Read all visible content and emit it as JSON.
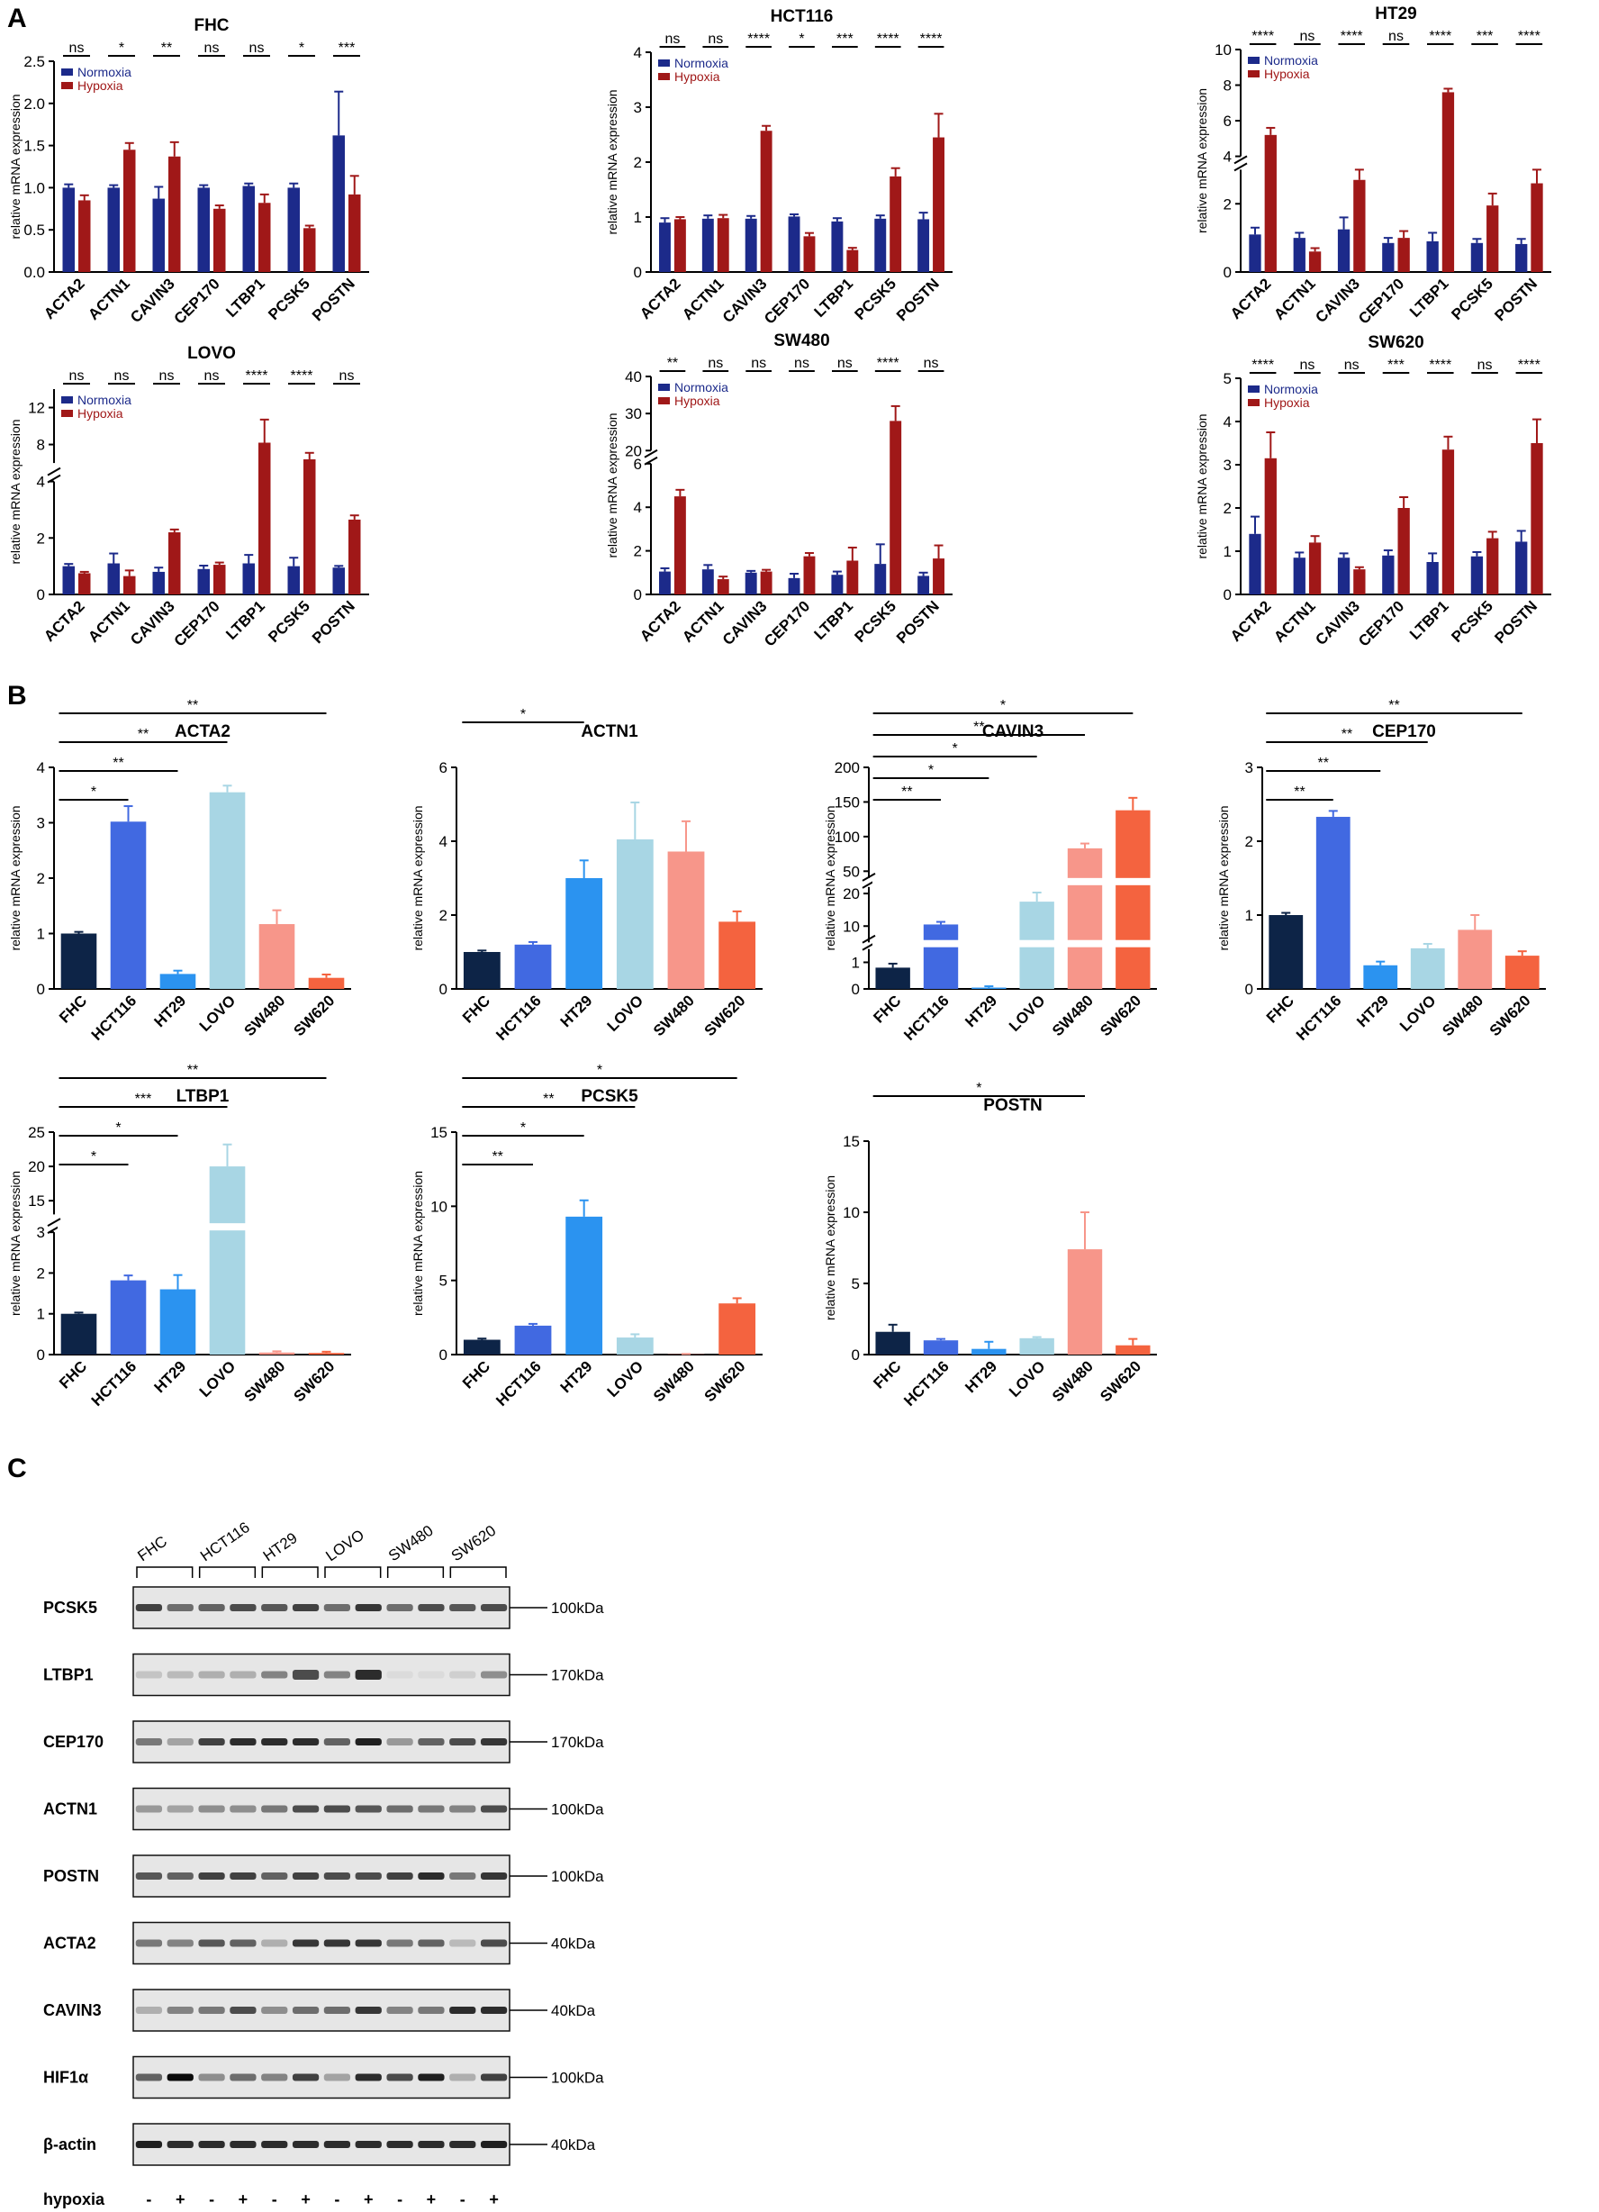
{
  "panels": {
    "a": "A",
    "b": "B",
    "c": "C"
  },
  "colors": {
    "normoxia": "#1c2a8a",
    "hypoxia": "#a01818",
    "cells": [
      "#0d2447",
      "#4169e1",
      "#2b93f0",
      "#a8d6e4",
      "#f7968a",
      "#f4633f"
    ]
  },
  "y_axis_label": "relative mRNA expression",
  "legend": {
    "normoxia": "Normoxia",
    "hypoxia": "Hypoxia"
  },
  "chart_data": [
    {
      "id": "a-FHC",
      "type": "bar",
      "title": "FHC",
      "categories": [
        "ACTA2",
        "ACTN1",
        "CAVIN3",
        "CEP170",
        "LTBP1",
        "PCSK5",
        "POSTN"
      ],
      "ylim": [
        0,
        2.5
      ],
      "yticks": [
        "0.0",
        "0.5",
        "1.0",
        "1.5",
        "2.0",
        "2.5"
      ],
      "series": [
        {
          "name": "Normoxia",
          "values": [
            1.0,
            1.0,
            0.87,
            1.0,
            1.02,
            1.0,
            1.62
          ],
          "errors": [
            0.04,
            0.03,
            0.14,
            0.03,
            0.03,
            0.05,
            0.52
          ]
        },
        {
          "name": "Hypoxia",
          "values": [
            0.85,
            1.45,
            1.37,
            0.75,
            0.82,
            0.52,
            0.92
          ],
          "errors": [
            0.06,
            0.08,
            0.17,
            0.04,
            0.1,
            0.03,
            0.22
          ]
        }
      ],
      "significance": [
        "ns",
        "*",
        "**",
        "ns",
        "ns",
        "*",
        "***"
      ]
    },
    {
      "id": "a-HCT116",
      "type": "bar",
      "title": "HCT116",
      "categories": [
        "ACTA2",
        "ACTN1",
        "CAVIN3",
        "CEP170",
        "LTBP1",
        "PCSK5",
        "POSTN"
      ],
      "ylim": [
        0,
        4
      ],
      "yticks": [
        "0",
        "1",
        "2",
        "3",
        "4"
      ],
      "series": [
        {
          "name": "Normoxia",
          "values": [
            0.9,
            0.97,
            0.97,
            1.01,
            0.92,
            0.97,
            0.96
          ],
          "errors": [
            0.08,
            0.06,
            0.05,
            0.04,
            0.06,
            0.06,
            0.12
          ]
        },
        {
          "name": "Hypoxia",
          "values": [
            0.96,
            0.98,
            2.57,
            0.65,
            0.4,
            1.74,
            2.45
          ],
          "errors": [
            0.04,
            0.06,
            0.09,
            0.06,
            0.04,
            0.15,
            0.43
          ]
        }
      ],
      "significance": [
        "ns",
        "ns",
        "****",
        "*",
        "***",
        "****",
        "****"
      ]
    },
    {
      "id": "a-HT29",
      "type": "bar",
      "title": "HT29",
      "categories": [
        "ACTA2",
        "ACTN1",
        "CAVIN3",
        "CEP170",
        "LTBP1",
        "PCSK5",
        "POSTN"
      ],
      "ylim": [
        0,
        10
      ],
      "yticks": [
        "0",
        "2",
        "4",
        "6",
        "8",
        "10"
      ],
      "series": [
        {
          "name": "Normoxia",
          "values": [
            1.1,
            1.0,
            1.25,
            0.85,
            0.9,
            0.85,
            0.82
          ],
          "errors": [
            0.2,
            0.15,
            0.35,
            0.15,
            0.25,
            0.12,
            0.15
          ]
        },
        {
          "name": "Hypoxia",
          "values": [
            5.2,
            0.6,
            2.7,
            1.0,
            7.6,
            1.95,
            2.6
          ],
          "errors": [
            0.4,
            0.1,
            0.35,
            0.2,
            0.2,
            0.35,
            0.6
          ]
        }
      ],
      "significance": [
        "****",
        "ns",
        "****",
        "ns",
        "****",
        "***",
        "****"
      ]
    },
    {
      "id": "a-LOVO",
      "type": "bar",
      "title": "LOVO",
      "categories": [
        "ACTA2",
        "ACTN1",
        "CAVIN3",
        "CEP170",
        "LTBP1",
        "PCSK5",
        "POSTN"
      ],
      "ylim": [
        0,
        14
      ],
      "yticks": [
        "0",
        "2",
        "4",
        "8",
        "12"
      ],
      "series": [
        {
          "name": "Normoxia",
          "values": [
            1.0,
            1.1,
            0.8,
            0.9,
            1.1,
            1.0,
            0.95
          ],
          "errors": [
            0.08,
            0.35,
            0.15,
            0.12,
            0.3,
            0.3,
            0.06
          ]
        },
        {
          "name": "Hypoxia",
          "values": [
            0.75,
            0.65,
            2.2,
            1.05,
            8.2,
            6.4,
            2.65
          ],
          "errors": [
            0.05,
            0.2,
            0.1,
            0.08,
            2.5,
            0.7,
            0.15
          ]
        }
      ],
      "significance": [
        "ns",
        "ns",
        "ns",
        "ns",
        "****",
        "****",
        "ns"
      ]
    },
    {
      "id": "a-SW480",
      "type": "bar",
      "title": "SW480",
      "categories": [
        "ACTA2",
        "ACTN1",
        "CAVIN3",
        "CEP170",
        "LTBP1",
        "PCSK5",
        "POSTN"
      ],
      "ylim": [
        0,
        40
      ],
      "yticks": [
        "0",
        "2",
        "4",
        "6",
        "20",
        "30",
        "40"
      ],
      "series": [
        {
          "name": "Normoxia",
          "values": [
            1.05,
            1.15,
            1.0,
            0.75,
            0.9,
            1.4,
            0.85
          ],
          "errors": [
            0.15,
            0.2,
            0.08,
            0.2,
            0.15,
            0.9,
            0.15
          ]
        },
        {
          "name": "Hypoxia",
          "values": [
            4.5,
            0.7,
            1.05,
            1.75,
            1.55,
            28.0,
            1.65
          ],
          "errors": [
            0.3,
            0.12,
            0.08,
            0.15,
            0.6,
            4.0,
            0.6
          ]
        }
      ],
      "significance": [
        "**",
        "ns",
        "ns",
        "ns",
        "ns",
        "****",
        "ns"
      ]
    },
    {
      "id": "a-SW620",
      "type": "bar",
      "title": "SW620",
      "categories": [
        "ACTA2",
        "ACTN1",
        "CAVIN3",
        "CEP170",
        "LTBP1",
        "PCSK5",
        "POSTN"
      ],
      "ylim": [
        0,
        5
      ],
      "yticks": [
        "0",
        "1",
        "2",
        "3",
        "4",
        "5"
      ],
      "series": [
        {
          "name": "Normoxia",
          "values": [
            1.4,
            0.85,
            0.85,
            0.9,
            0.75,
            0.88,
            1.22
          ],
          "errors": [
            0.4,
            0.12,
            0.1,
            0.12,
            0.2,
            0.1,
            0.25
          ]
        },
        {
          "name": "Hypoxia",
          "values": [
            3.15,
            1.2,
            0.58,
            2.0,
            3.35,
            1.3,
            3.5
          ],
          "errors": [
            0.6,
            0.15,
            0.05,
            0.25,
            0.3,
            0.15,
            0.55
          ]
        }
      ],
      "significance": [
        "****",
        "ns",
        "ns",
        "***",
        "****",
        "ns",
        "****"
      ]
    },
    {
      "id": "b-ACTA2",
      "type": "bar",
      "title": "ACTA2",
      "categories": [
        "FHC",
        "HCT116",
        "HT29",
        "LOVO",
        "SW480",
        "SW620"
      ],
      "ylim": [
        0,
        4
      ],
      "yticks": [
        "0",
        "1",
        "2",
        "3",
        "4"
      ],
      "values": [
        1.0,
        3.02,
        0.27,
        3.55,
        1.17,
        0.2
      ],
      "errors": [
        0.03,
        0.28,
        0.06,
        0.12,
        0.25,
        0.06
      ],
      "comparisons": [
        {
          "to": "HCT116",
          "label": "*"
        },
        {
          "to": "HT29",
          "label": "**"
        },
        {
          "to": "LOVO",
          "label": "**"
        },
        {
          "to": "SW620",
          "label": "**"
        }
      ]
    },
    {
      "id": "b-ACTN1",
      "type": "bar",
      "title": "ACTN1",
      "categories": [
        "FHC",
        "HCT116",
        "HT29",
        "LOVO",
        "SW480",
        "SW620"
      ],
      "ylim": [
        0,
        6
      ],
      "yticks": [
        "0",
        "2",
        "4",
        "6"
      ],
      "values": [
        1.0,
        1.2,
        3.0,
        4.05,
        3.72,
        1.82
      ],
      "errors": [
        0.04,
        0.07,
        0.48,
        1.0,
        0.82,
        0.28
      ],
      "comparisons": [
        {
          "to": "HT29",
          "label": "*"
        }
      ]
    },
    {
      "id": "b-CAVIN3",
      "type": "bar",
      "title": "CAVIN3",
      "categories": [
        "FHC",
        "HCT116",
        "HT29",
        "LOVO",
        "SW480",
        "SW620"
      ],
      "ylim": [
        0,
        200
      ],
      "yticks": [
        "0",
        "1",
        "10",
        "20",
        "50",
        "100",
        "150",
        "200"
      ],
      "values": [
        0.8,
        10.5,
        0.05,
        17.5,
        83,
        138
      ],
      "errors": [
        0.15,
        0.8,
        0.05,
        2.8,
        7,
        18
      ],
      "comparisons": [
        {
          "to": "HCT116",
          "label": "**"
        },
        {
          "to": "HT29",
          "label": "*"
        },
        {
          "to": "LOVO",
          "label": "*"
        },
        {
          "to": "SW480",
          "label": "**"
        },
        {
          "to": "SW620",
          "label": "*"
        }
      ]
    },
    {
      "id": "b-CEP170",
      "type": "bar",
      "title": "CEP170",
      "categories": [
        "FHC",
        "HCT116",
        "HT29",
        "LOVO",
        "SW480",
        "SW620"
      ],
      "ylim": [
        0,
        3
      ],
      "yticks": [
        "0",
        "1",
        "2",
        "3"
      ],
      "values": [
        1.0,
        2.33,
        0.32,
        0.55,
        0.8,
        0.45
      ],
      "errors": [
        0.03,
        0.08,
        0.05,
        0.06,
        0.2,
        0.06
      ],
      "comparisons": [
        {
          "to": "HCT116",
          "label": "**"
        },
        {
          "to": "HT29",
          "label": "**"
        },
        {
          "to": "LOVO",
          "label": "**"
        },
        {
          "to": "SW620",
          "label": "**"
        }
      ]
    },
    {
      "id": "b-LTBP1",
      "type": "bar",
      "title": "LTBP1",
      "categories": [
        "FHC",
        "HCT116",
        "HT29",
        "LOVO",
        "SW480",
        "SW620"
      ],
      "ylim": [
        0,
        25
      ],
      "yticks": [
        "0",
        "1",
        "2",
        "3",
        "15",
        "20",
        "25"
      ],
      "values": [
        1.0,
        1.82,
        1.6,
        20,
        0.05,
        0.04
      ],
      "errors": [
        0.03,
        0.12,
        0.35,
        3.2,
        0.03,
        0.03
      ],
      "comparisons": [
        {
          "to": "HCT116",
          "label": "*"
        },
        {
          "to": "HT29",
          "label": "*"
        },
        {
          "to": "LOVO",
          "label": "***"
        },
        {
          "to": "SW620",
          "label": "**"
        }
      ]
    },
    {
      "id": "b-PCSK5",
      "type": "bar",
      "title": "PCSK5",
      "categories": [
        "FHC",
        "HCT116",
        "HT29",
        "LOVO",
        "SW480",
        "SW620"
      ],
      "ylim": [
        0,
        15
      ],
      "yticks": [
        "0",
        "5",
        "10",
        "15"
      ],
      "values": [
        1.0,
        1.95,
        9.3,
        1.15,
        0.02,
        3.45
      ],
      "errors": [
        0.08,
        0.12,
        1.1,
        0.22,
        0.02,
        0.35
      ],
      "comparisons": [
        {
          "to": "HCT116",
          "label": "**"
        },
        {
          "to": "HT29",
          "label": "*"
        },
        {
          "to": "LOVO",
          "label": "**"
        },
        {
          "to": "SW620",
          "label": "*"
        }
      ]
    },
    {
      "id": "b-POSTN",
      "type": "bar",
      "title": "POSTN",
      "categories": [
        "FHC",
        "HCT116",
        "HT29",
        "LOVO",
        "SW480",
        "SW620"
      ],
      "ylim": [
        0,
        15
      ],
      "yticks": [
        "0",
        "5",
        "10",
        "15"
      ],
      "values": [
        1.6,
        1.0,
        0.4,
        1.15,
        7.4,
        0.65
      ],
      "errors": [
        0.5,
        0.1,
        0.5,
        0.08,
        2.6,
        0.45
      ],
      "comparisons": [
        {
          "to": "SW480",
          "label": "*"
        }
      ]
    }
  ],
  "western_blot": {
    "cell_lines": [
      "FHC",
      "HCT116",
      "HT29",
      "LOVO",
      "SW480",
      "SW620"
    ],
    "rows": [
      {
        "protein": "PCSK5",
        "size": "100kDa",
        "intensity": [
          0.75,
          0.55,
          0.6,
          0.7,
          0.65,
          0.75,
          0.55,
          0.8,
          0.55,
          0.7,
          0.65,
          0.7
        ]
      },
      {
        "protein": "LTBP1",
        "size": "170kDa",
        "intensity": [
          0.15,
          0.2,
          0.25,
          0.25,
          0.45,
          0.7,
          0.45,
          0.85,
          0.05,
          0.05,
          0.1,
          0.4
        ]
      },
      {
        "protein": "CEP170",
        "size": "170kDa",
        "intensity": [
          0.5,
          0.3,
          0.75,
          0.85,
          0.85,
          0.85,
          0.6,
          0.9,
          0.35,
          0.6,
          0.7,
          0.8
        ]
      },
      {
        "protein": "ACTN1",
        "size": "100kDa",
        "intensity": [
          0.35,
          0.3,
          0.4,
          0.4,
          0.5,
          0.7,
          0.7,
          0.65,
          0.55,
          0.5,
          0.45,
          0.7
        ]
      },
      {
        "protein": "POSTN",
        "size": "100kDa",
        "intensity": [
          0.65,
          0.6,
          0.75,
          0.75,
          0.6,
          0.75,
          0.7,
          0.7,
          0.75,
          0.85,
          0.5,
          0.8
        ]
      },
      {
        "protein": "ACTA2",
        "size": "40kDa",
        "intensity": [
          0.5,
          0.45,
          0.65,
          0.6,
          0.25,
          0.8,
          0.8,
          0.8,
          0.5,
          0.6,
          0.2,
          0.7
        ]
      },
      {
        "protein": "CAVIN3",
        "size": "40kDa",
        "intensity": [
          0.25,
          0.45,
          0.5,
          0.7,
          0.4,
          0.55,
          0.55,
          0.8,
          0.45,
          0.5,
          0.85,
          0.85
        ]
      },
      {
        "protein": "HIF1α",
        "size": "100kDa",
        "intensity": [
          0.6,
          1.0,
          0.4,
          0.55,
          0.45,
          0.75,
          0.3,
          0.85,
          0.7,
          0.9,
          0.25,
          0.75
        ]
      },
      {
        "protein": "β-actin",
        "size": "40kDa",
        "intensity": [
          0.9,
          0.85,
          0.85,
          0.85,
          0.85,
          0.85,
          0.85,
          0.85,
          0.85,
          0.85,
          0.85,
          0.9
        ]
      }
    ],
    "condition_label": "hypoxia",
    "lane_signs": [
      "-",
      "+",
      "-",
      "+",
      "-",
      "+",
      "-",
      "+",
      "-",
      "+",
      "-",
      "+"
    ]
  }
}
